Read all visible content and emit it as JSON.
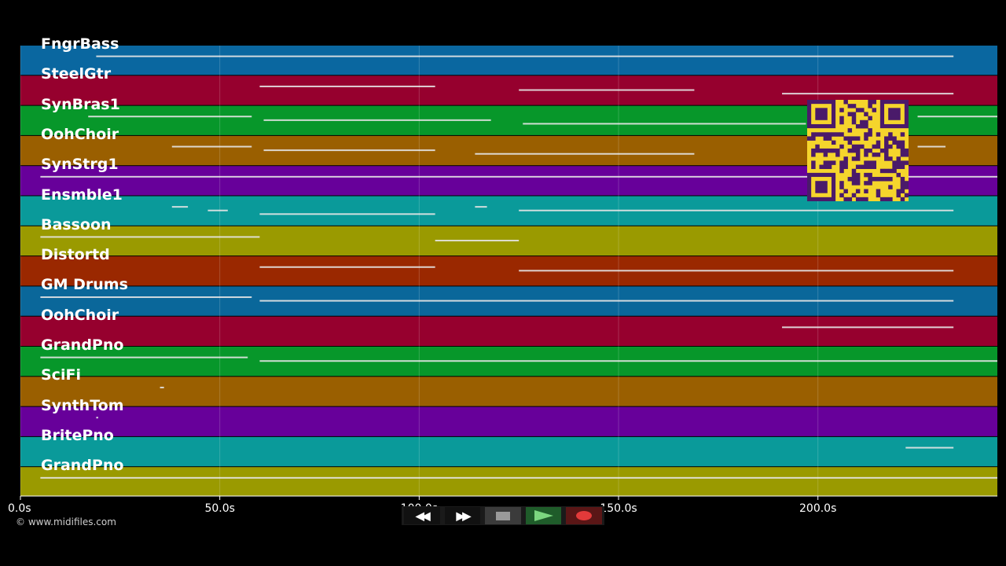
{
  "window": {
    "copyright": "© www.midifiles.com"
  },
  "timeline": {
    "max_seconds": 245,
    "ticks": [
      {
        "value": 0,
        "label": "0.0s"
      },
      {
        "value": 50,
        "label": "50.0s"
      },
      {
        "value": 100,
        "label": "100.0s"
      },
      {
        "value": 150,
        "label": "150.0s"
      },
      {
        "value": 200,
        "label": "200.0s"
      }
    ]
  },
  "tracks": [
    {
      "name": "FngrBass",
      "color": "#0a67a0",
      "notes": [
        [
          19,
          234
        ]
      ]
    },
    {
      "name": "SteelGtr",
      "color": "#96002e",
      "notes": [
        [
          60,
          104
        ],
        [
          125,
          169
        ],
        [
          191,
          234
        ]
      ]
    },
    {
      "name": "SynBras1",
      "color": "#07972a",
      "notes": [
        [
          17,
          58
        ],
        [
          61,
          118
        ],
        [
          126,
          197
        ],
        [
          225,
          245
        ]
      ]
    },
    {
      "name": "OohChoir",
      "color": "#9a5f00",
      "notes": [
        [
          38,
          58
        ],
        [
          61,
          104
        ],
        [
          114,
          169
        ],
        [
          225,
          232
        ]
      ]
    },
    {
      "name": "SynStrg1",
      "color": "#67009a",
      "notes": [
        [
          5,
          245
        ]
      ]
    },
    {
      "name": "Ensmble1",
      "color": "#0a9a9a",
      "notes": [
        [
          38,
          42
        ],
        [
          47,
          52
        ],
        [
          60,
          104
        ],
        [
          114,
          117
        ],
        [
          125,
          234
        ]
      ]
    },
    {
      "name": "Bassoon",
      "color": "#9a9a00",
      "notes": [
        [
          5,
          60
        ],
        [
          104,
          125
        ]
      ]
    },
    {
      "name": "Distortd",
      "color": "#9a2800",
      "notes": [
        [
          60,
          104
        ],
        [
          125,
          234
        ]
      ]
    },
    {
      "name": "GM Drums",
      "color": "#0a679a",
      "notes": [
        [
          5,
          58
        ],
        [
          60,
          234
        ]
      ]
    },
    {
      "name": "OohChoir",
      "color": "#96002e",
      "notes": [
        [
          191,
          234
        ]
      ]
    },
    {
      "name": "GrandPno",
      "color": "#07972a",
      "notes": [
        [
          5,
          57
        ],
        [
          60,
          245
        ]
      ]
    },
    {
      "name": "SciFi",
      "color": "#9a5f00",
      "notes": [
        [
          35,
          36
        ]
      ]
    },
    {
      "name": "SynthTom",
      "color": "#67009a",
      "notes": [
        [
          19,
          19.5
        ]
      ]
    },
    {
      "name": "BritePno",
      "color": "#0a9a9a",
      "notes": [
        [
          222,
          234
        ]
      ]
    },
    {
      "name": "GrandPno",
      "color": "#9a9a00",
      "notes": [
        [
          5,
          245
        ]
      ]
    }
  ],
  "controls": {
    "rewind": "rewind-icon",
    "fast_forward": "fast-forward-icon",
    "stop": "stop-icon",
    "play": "play-icon",
    "record": "record-icon",
    "rewind_glyph": "◀◀",
    "forward_glyph": "▶▶"
  },
  "qr_code": {
    "fg": "#4a1a6a",
    "bg": "#f5d52c"
  }
}
